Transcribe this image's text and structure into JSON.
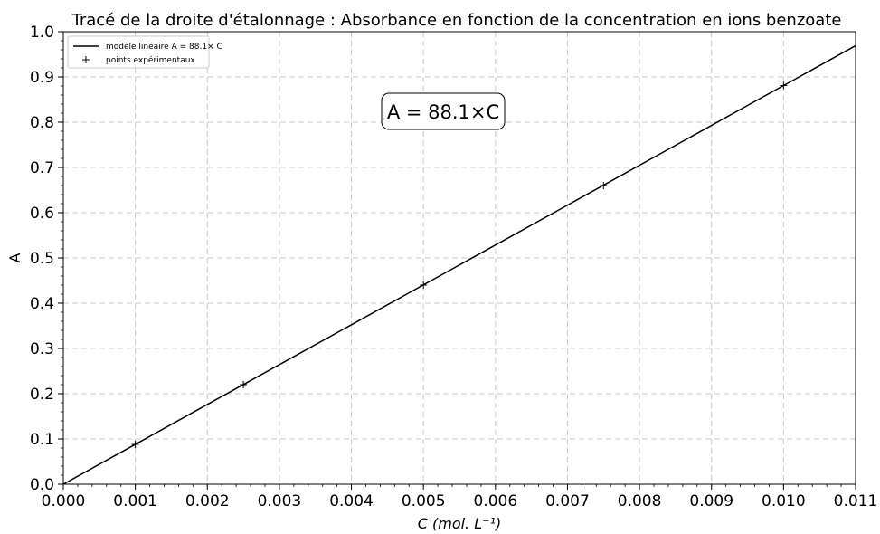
{
  "chart_data": {
    "type": "line",
    "title": "Tracé de la droite d'étalonnage : Absorbance en fonction de la concentration en ions benzoate",
    "xlabel": "C (mol. L⁻¹)",
    "ylabel": "A",
    "xlim": [
      0,
      0.011
    ],
    "ylim": [
      0,
      1.0
    ],
    "x_ticks": [
      0.0,
      0.001,
      0.002,
      0.003,
      0.004,
      0.005,
      0.006,
      0.007,
      0.008,
      0.009,
      0.01,
      0.011
    ],
    "x_tick_labels": [
      "0.000",
      "0.001",
      "0.002",
      "0.003",
      "0.004",
      "0.005",
      "0.006",
      "0.007",
      "0.008",
      "0.009",
      "0.010",
      "0.011"
    ],
    "y_ticks": [
      0.0,
      0.1,
      0.2,
      0.3,
      0.4,
      0.5,
      0.6,
      0.7,
      0.8,
      0.9,
      1.0
    ],
    "y_tick_labels": [
      "0.0",
      "0.1",
      "0.2",
      "0.3",
      "0.4",
      "0.5",
      "0.6",
      "0.7",
      "0.8",
      "0.9",
      "1.0"
    ],
    "grid": true,
    "legend_position": "top-left",
    "series": [
      {
        "name": "modèle linéaire A = 88.1× C",
        "kind": "line",
        "color": "#000000",
        "slope": 88.1,
        "x": [
          0,
          0.011
        ],
        "y": [
          0,
          0.9691
        ]
      },
      {
        "name": "points expérimentaux",
        "kind": "scatter",
        "marker": "+",
        "color": "#000000",
        "x": [
          0.001,
          0.0025,
          0.005,
          0.0075,
          0.01
        ],
        "y": [
          0.088,
          0.22,
          0.44,
          0.66,
          0.881
        ]
      }
    ],
    "annotation": "A = 88.1×C"
  }
}
